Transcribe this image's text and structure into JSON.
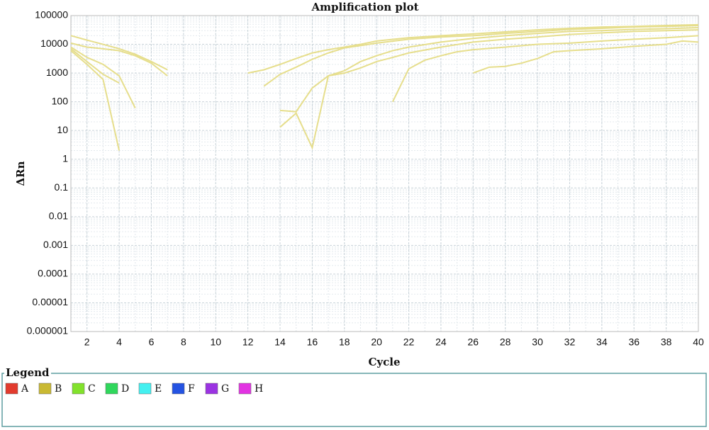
{
  "chart_data": {
    "type": "line",
    "title": "Amplification plot",
    "xlabel": "Cycle",
    "ylabel": "ΔRn",
    "yscale": "log",
    "grid": true,
    "xlim": [
      1,
      40
    ],
    "xticks": [
      2,
      4,
      6,
      8,
      10,
      12,
      14,
      16,
      18,
      20,
      22,
      24,
      26,
      28,
      30,
      32,
      34,
      36,
      38,
      40
    ],
    "ylim": [
      1e-06,
      100000
    ],
    "yticks": [
      1e-06,
      1e-05,
      0.0001,
      0.001,
      0.01,
      0.1,
      1,
      10,
      100,
      1000,
      10000,
      100000
    ],
    "line_color": "#e6de8c",
    "legend_title": "Legend",
    "series": [
      {
        "name": "A",
        "color": "#e23b2e"
      },
      {
        "name": "B",
        "color": "#c9b933",
        "lines": [
          {
            "x": [
              1,
              2,
              3,
              4,
              5,
              6,
              7
            ],
            "values": [
              20000,
              14000,
              10000,
              7000,
              4500,
              2500,
              1300
            ]
          },
          {
            "x": [
              1,
              2,
              3,
              4,
              5,
              6,
              7
            ],
            "values": [
              11000,
              8000,
              7000,
              6000,
              4000,
              2200,
              800
            ]
          },
          {
            "x": [
              1,
              2,
              3,
              4,
              5
            ],
            "values": [
              8000,
              3500,
              2000,
              800,
              60
            ]
          },
          {
            "x": [
              1,
              2,
              3,
              4
            ],
            "values": [
              7000,
              2500,
              900,
              450
            ]
          },
          {
            "x": [
              1,
              2,
              3,
              4
            ],
            "values": [
              6000,
              2000,
              600,
              2
            ]
          },
          {
            "x": [
              12,
              13,
              14,
              15,
              16,
              17,
              18,
              19,
              20,
              22,
              24,
              26,
              28,
              30,
              32,
              34,
              36,
              38,
              40
            ],
            "values": [
              1000,
              1300,
              2000,
              3200,
              5000,
              6500,
              8000,
              10000,
              13000,
              17000,
              20000,
              23000,
              27000,
              32000,
              36000,
              40000,
              42000,
              45000,
              48000
            ]
          },
          {
            "x": [
              13,
              14,
              15,
              16,
              17,
              18,
              19,
              20,
              22,
              24,
              26,
              28,
              30,
              32,
              34,
              36,
              38,
              40
            ],
            "values": [
              350,
              900,
              1600,
              3000,
              5000,
              7500,
              9000,
              11000,
              15000,
              18000,
              20000,
              24000,
              28000,
              33000,
              36000,
              40000,
              42000,
              45000
            ]
          },
          {
            "x": [
              14,
              15,
              16,
              17,
              18,
              19,
              20,
              21,
              22,
              24,
              26,
              28,
              30,
              32,
              34,
              36,
              38,
              40
            ],
            "values": [
              50,
              45,
              300,
              800,
              1200,
              2500,
              4000,
              6000,
              8000,
              12000,
              16000,
              20000,
              24000,
              28000,
              30000,
              33000,
              35000,
              38000
            ]
          },
          {
            "x": [
              14,
              15,
              16,
              17,
              18,
              19,
              20,
              21,
              22,
              24,
              26,
              28,
              30,
              32,
              34,
              36,
              38,
              40
            ],
            "values": [
              13,
              40,
              2.5,
              800,
              1000,
              1500,
              2500,
              3500,
              5000,
              8000,
              12000,
              15000,
              18000,
              22000,
              25000,
              28000,
              30000,
              32000
            ]
          },
          {
            "x": [
              21,
              22,
              23,
              24,
              25,
              26,
              28,
              30,
              32,
              34,
              36,
              38,
              40
            ],
            "values": [
              100,
              1400,
              2800,
              4000,
              5500,
              6500,
              8000,
              10000,
              11000,
              13000,
              15000,
              17000,
              20000
            ]
          },
          {
            "x": [
              26,
              27,
              28,
              29,
              30,
              31,
              32,
              34,
              36,
              38,
              39,
              40
            ],
            "values": [
              1000,
              1600,
              1700,
              2200,
              3200,
              5500,
              6000,
              7000,
              8500,
              10000,
              13000,
              12000
            ]
          }
        ]
      },
      {
        "name": "C",
        "color": "#82e22c"
      },
      {
        "name": "D",
        "color": "#30d75c"
      },
      {
        "name": "E",
        "color": "#44f0f0"
      },
      {
        "name": "F",
        "color": "#2453e2"
      },
      {
        "name": "G",
        "color": "#9b33e2"
      },
      {
        "name": "H",
        "color": "#e233e2"
      }
    ]
  }
}
